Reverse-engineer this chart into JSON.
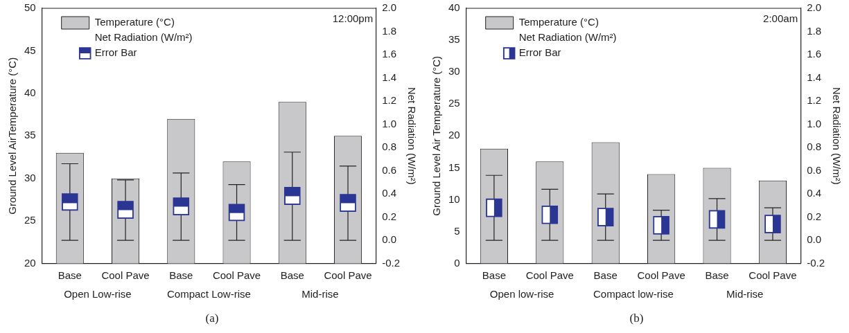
{
  "chart_data": [
    {
      "type": "bar",
      "title": "(a)",
      "subtitle": "12:00pm",
      "ylabel": "Ground Level AirTemperature (°C)",
      "y2label": "Net Radiation (W/m²)",
      "legend_title": "Net Radiation (W/m²)",
      "legend": "top left",
      "grid": false,
      "categories": [
        "Base",
        "Cool Pave",
        "Base",
        "Cool Pave",
        "Base",
        "Cool Pave"
      ],
      "annotations": [
        "Open Low-rise",
        "Compact Low-rise",
        "Mid-rise"
      ],
      "ylim": [
        20,
        50
      ],
      "yticks": [
        20,
        25,
        30,
        35,
        40,
        45,
        50
      ],
      "y2lim": [
        -0.2,
        2.0
      ],
      "y2ticks": [
        {
          "value": -0.2,
          "label": "-0.2"
        },
        {
          "value": 0,
          "label": "0.0"
        },
        {
          "value": 0.2,
          "label": "0.2"
        },
        {
          "value": 0.4,
          "label": "0.4"
        },
        {
          "value": 0.6,
          "label": "0.6"
        },
        {
          "value": 0.8,
          "label": "0.8"
        },
        {
          "value": 1,
          "label": "1.0"
        },
        {
          "value": 1.2,
          "label": "1.2"
        },
        {
          "value": 1.4,
          "label": "1.4"
        },
        {
          "value": 1.6,
          "label": "1.6"
        },
        {
          "value": 1.8,
          "label": "1.8"
        },
        {
          "value": 2,
          "label": "2.0"
        }
      ],
      "series": [
        {
          "name": "Temperature (°C)",
          "color": "#c8c8ca",
          "values": [
            33,
            30,
            37,
            32,
            39,
            35
          ]
        },
        {
          "name": "Error Bar",
          "type": "box",
          "axis": "y2",
          "color": "#2b3593",
          "boxes": [
            {
              "low": 0,
              "q1": 0.26,
              "median": 0.32,
              "q3": 0.4,
              "high": 0.66
            },
            {
              "low": 0,
              "q1": 0.19,
              "median": 0.26,
              "q3": 0.335,
              "high": 0.52
            },
            {
              "low": 0,
              "q1": 0.22,
              "median": 0.29,
              "q3": 0.365,
              "high": 0.58
            },
            {
              "low": 0,
              "q1": 0.17,
              "median": 0.235,
              "q3": 0.31,
              "high": 0.48
            },
            {
              "low": 0,
              "q1": 0.31,
              "median": 0.38,
              "q3": 0.455,
              "high": 0.76
            },
            {
              "low": 0,
              "q1": 0.25,
              "median": 0.32,
              "q3": 0.395,
              "high": 0.64
            }
          ]
        }
      ]
    },
    {
      "type": "bar",
      "title": "(b)",
      "subtitle": "2:00am",
      "ylabel": "Ground Level Air Temperature (°C)",
      "y2label": "Net Radiation (W/m²)",
      "legend_title": "Net Radiation (W/m²)",
      "legend": "top left",
      "grid": false,
      "categories": [
        "Base",
        "Cool Pave",
        "Base",
        "Cool Pave",
        "Base",
        "Cool Pave"
      ],
      "annotations": [
        "Open low-rise",
        "Compact low-rise",
        "Mid-rise"
      ],
      "ylim": [
        0,
        40
      ],
      "yticks": [
        0,
        5,
        10,
        15,
        20,
        25,
        30,
        35,
        40
      ],
      "y2lim": [
        -0.2,
        2.0
      ],
      "y2ticks": [
        {
          "value": -0.2,
          "label": "-0.2"
        },
        {
          "value": 0,
          "label": "0.0"
        },
        {
          "value": 0.2,
          "label": "0.2"
        },
        {
          "value": 0.4,
          "label": "0.4"
        },
        {
          "value": 0.6,
          "label": "0.6"
        },
        {
          "value": 0.8,
          "label": "0.8"
        },
        {
          "value": 1,
          "label": "1.0"
        },
        {
          "value": 1.2,
          "label": "1.2"
        },
        {
          "value": 1.4,
          "label": "1.4"
        },
        {
          "value": 1.6,
          "label": "1.6"
        },
        {
          "value": 1.8,
          "label": "1.8"
        },
        {
          "value": 2,
          "label": "2.0"
        }
      ],
      "series": [
        {
          "name": "Temperature (°C)",
          "color": "#c8c8ca",
          "values": [
            18,
            16,
            19,
            14,
            15,
            13
          ]
        },
        {
          "name": "Error Bar",
          "type": "box",
          "axis": "y2",
          "color": "#2b3593",
          "boxes": [
            {
              "low": 0,
              "q1": 0.205,
              "q3": 0.355,
              "high": 0.56
            },
            {
              "low": 0,
              "q1": 0.145,
              "q3": 0.295,
              "high": 0.44
            },
            {
              "low": 0,
              "q1": 0.125,
              "q3": 0.275,
              "high": 0.4
            },
            {
              "low": 0,
              "q1": 0.055,
              "q3": 0.205,
              "high": 0.26
            },
            {
              "low": 0,
              "q1": 0.105,
              "q3": 0.255,
              "high": 0.36
            },
            {
              "low": 0,
              "q1": 0.065,
              "q3": 0.215,
              "high": 0.28
            }
          ]
        }
      ]
    }
  ]
}
